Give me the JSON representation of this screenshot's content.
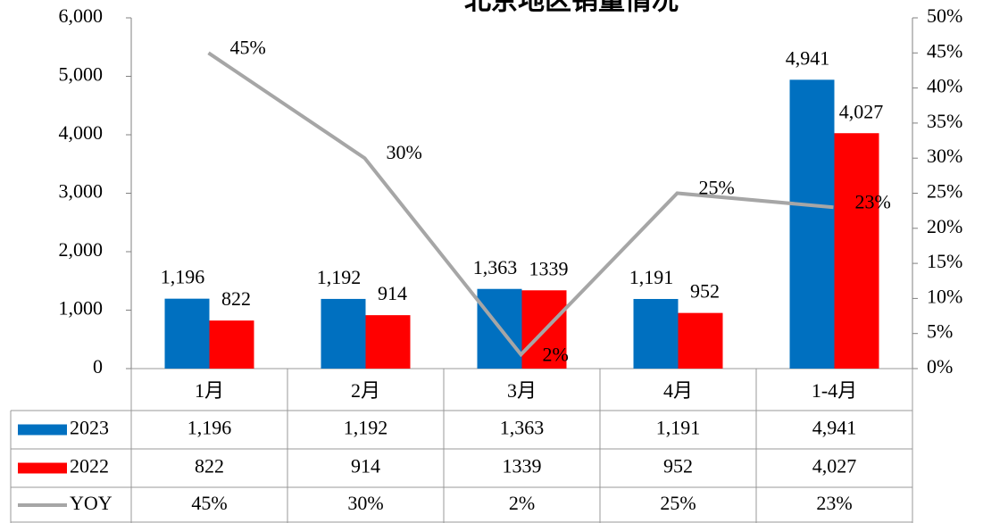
{
  "chart_data": {
    "type": "bar-line",
    "title": "北京地区销量情况",
    "categories": [
      "1月",
      "2月",
      "3月",
      "4月",
      "1-4月"
    ],
    "series": [
      {
        "name": "2023",
        "color": "#0070c0",
        "type": "bar",
        "values": [
          1196,
          1192,
          1363,
          1191,
          4941
        ],
        "value_labels": [
          "1,196",
          "1,192",
          "1,363",
          "1,191",
          "4,941"
        ]
      },
      {
        "name": "2022",
        "color": "#ff0000",
        "type": "bar",
        "values": [
          822,
          914,
          1339,
          952,
          4027
        ],
        "value_labels": [
          "822",
          "914",
          "1339",
          "952",
          "4,027"
        ]
      },
      {
        "name": "YOY",
        "color": "#a6a6a6",
        "type": "line",
        "axis": "y2",
        "values": [
          45,
          30,
          2,
          25,
          23
        ],
        "value_labels": [
          "45%",
          "30%",
          "2%",
          "25%",
          "23%"
        ]
      }
    ],
    "ylim": [
      0,
      6000
    ],
    "yticks": [
      0,
      {
        "value": 1000,
        "label": "1,000"
      },
      {
        "value": 2000,
        "label": "2,000"
      },
      {
        "value": 3000,
        "label": "3,000"
      },
      {
        "value": 4000,
        "label": "4,000"
      },
      {
        "value": 5000,
        "label": "5,000"
      },
      {
        "value": 6000,
        "label": "6,000"
      }
    ],
    "y2lim": [
      0,
      50
    ],
    "y2ticks": [
      {
        "value": 0,
        "label": "0%"
      },
      {
        "value": 5,
        "label": "5%"
      },
      {
        "value": 10,
        "label": "10%"
      },
      {
        "value": 15,
        "label": "15%"
      },
      {
        "value": 20,
        "label": "20%"
      },
      {
        "value": 25,
        "label": "25%"
      },
      {
        "value": 30,
        "label": "30%"
      },
      {
        "value": 35,
        "label": "35%"
      },
      {
        "value": 40,
        "label": "40%"
      },
      {
        "value": 45,
        "label": "45%"
      },
      {
        "value": 50,
        "label": "50%"
      }
    ],
    "legend": "table"
  }
}
